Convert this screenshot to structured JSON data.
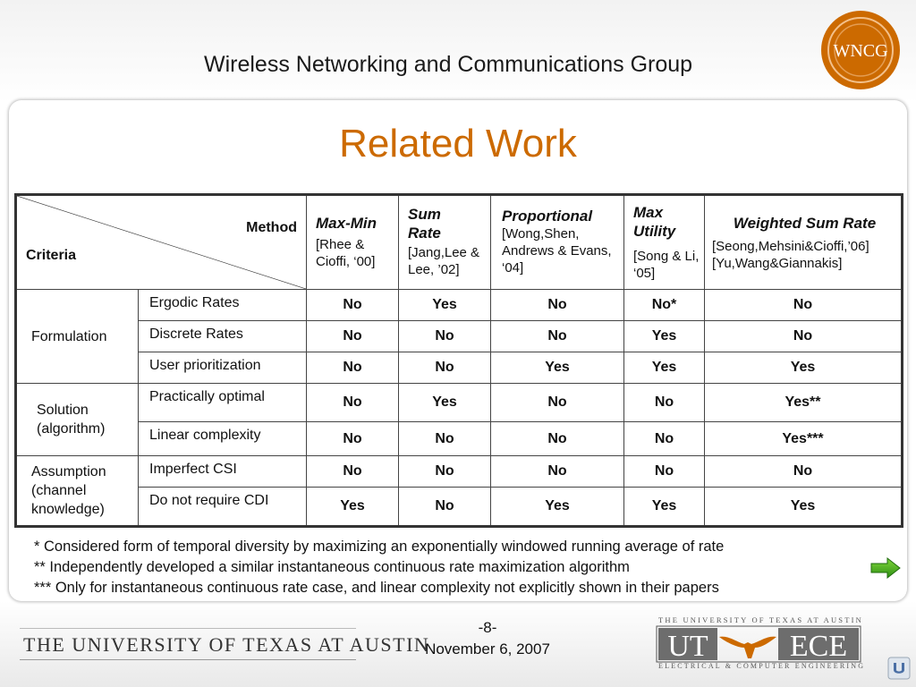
{
  "header": {
    "title": "Wireless Networking and Communications Group",
    "logo_text": "WNCG"
  },
  "slide": {
    "title": "Related Work"
  },
  "table": {
    "corner": {
      "method": "Method",
      "criteria": "Criteria"
    },
    "methods": [
      {
        "title": "Max-Min",
        "ref": "[Rhee & Cioffi, ‘00]"
      },
      {
        "title": "Sum Rate",
        "ref": "[Jang,Lee & Lee, ’02]"
      },
      {
        "title": "Proportional",
        "ref": "[Wong,Shen, Andrews & Evans, ‘04]"
      },
      {
        "title": "Max Utility",
        "ref": "[Song & Li, ‘05]"
      },
      {
        "title": "Weighted Sum Rate",
        "ref": "[Seong,Mehsini&Cioffi,’06] [Yu,Wang&Giannakis]"
      }
    ],
    "groups": [
      {
        "label": "Formulation"
      },
      {
        "label": "Solution (algorithm)"
      },
      {
        "label": "Assumption (channel knowledge)"
      }
    ],
    "rows": [
      {
        "criterion": "Ergodic Rates",
        "values": [
          "No",
          "Yes",
          "No",
          "No*",
          "No"
        ]
      },
      {
        "criterion": "Discrete Rates",
        "values": [
          "No",
          "No",
          "No",
          "Yes",
          "No"
        ]
      },
      {
        "criterion": "User prioritization",
        "values": [
          "No",
          "No",
          "Yes",
          "Yes",
          "Yes"
        ]
      },
      {
        "criterion": "Practically optimal",
        "values": [
          "No",
          "Yes",
          "No",
          "No",
          "Yes**"
        ]
      },
      {
        "criterion": "Linear complexity",
        "values": [
          "No",
          "No",
          "No",
          "No",
          "Yes***"
        ]
      },
      {
        "criterion": "Imperfect CSI",
        "values": [
          "No",
          "No",
          "No",
          "No",
          "No"
        ]
      },
      {
        "criterion": "Do not require CDI",
        "values": [
          "Yes",
          "No",
          "Yes",
          "Yes",
          "Yes"
        ]
      }
    ]
  },
  "footnotes": [
    "* Considered form of temporal diversity by maximizing an exponentially windowed running average of rate",
    "** Independently developed a similar instantaneous continuous rate maximization algorithm",
    "*** Only for instantaneous continuous rate case, and linear complexity not explicitly shown in their papers"
  ],
  "footer": {
    "page_number": "-8-",
    "date": "November 6, 2007",
    "ut_wordmark": "THE UNIVERSITY OF TEXAS AT AUSTIN",
    "utece_top": "THE UNIVERSITY OF TEXAS AT AUSTIN",
    "utece_left": "UT",
    "utece_right": "ECE",
    "utece_bottom": "ELECTRICAL & COMPUTER ENGINEERING"
  },
  "colors": {
    "title": "#cc6a00",
    "no": "#e00000",
    "yes": "#009999",
    "logo_orange": "#cc6a00"
  },
  "icons": [
    "next-arrow-icon",
    "home-icon",
    "longhorn-icon"
  ]
}
